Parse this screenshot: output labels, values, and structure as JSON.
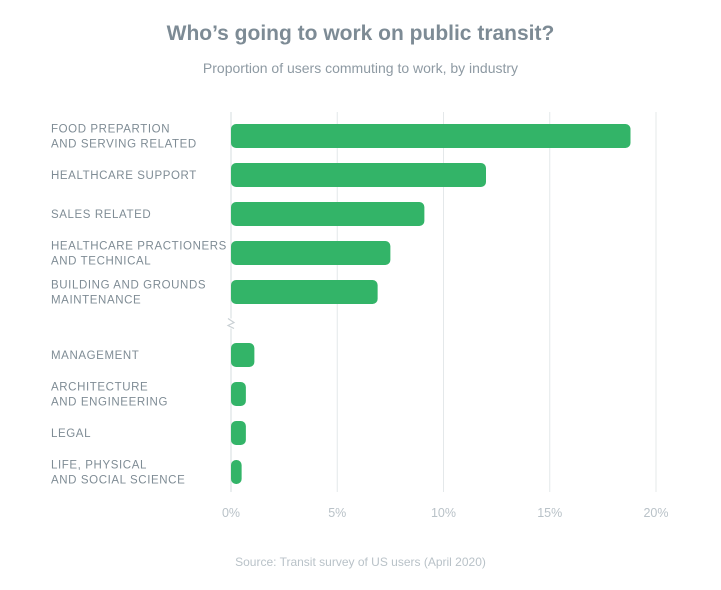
{
  "chart_data": {
    "type": "bar",
    "orientation": "horizontal",
    "title": "Who’s going to work on public transit?",
    "subtitle": "Proportion of users commuting to work, by industry",
    "categories": [
      "FOOD PREPARTION\nAND SERVING RELATED",
      "HEALTHCARE SUPPORT",
      "SALES RELATED",
      "HEALTHCARE PRACTIONERS\nAND TECHNICAL",
      "BUILDING AND GROUNDS\nMAINTENANCE",
      "MANAGEMENT",
      "ARCHITECTURE\nAND ENGINEERING",
      "LEGAL",
      "LIFE, PHYSICAL\nAND SOCIAL SCIENCE"
    ],
    "values": [
      18.8,
      12.0,
      9.1,
      7.5,
      6.9,
      1.1,
      0.7,
      0.7,
      0.5
    ],
    "value_unit": "%",
    "xlim": [
      0,
      20
    ],
    "x_ticks": [
      "0%",
      "5%",
      "10%",
      "15%",
      "20%"
    ],
    "x_tick_values": [
      0,
      5,
      10,
      15,
      20
    ],
    "grid": true,
    "axis_break_after_index": 4,
    "bar_color": "#33b468",
    "source": "Source: Transit survey of US users (April 2020)"
  }
}
